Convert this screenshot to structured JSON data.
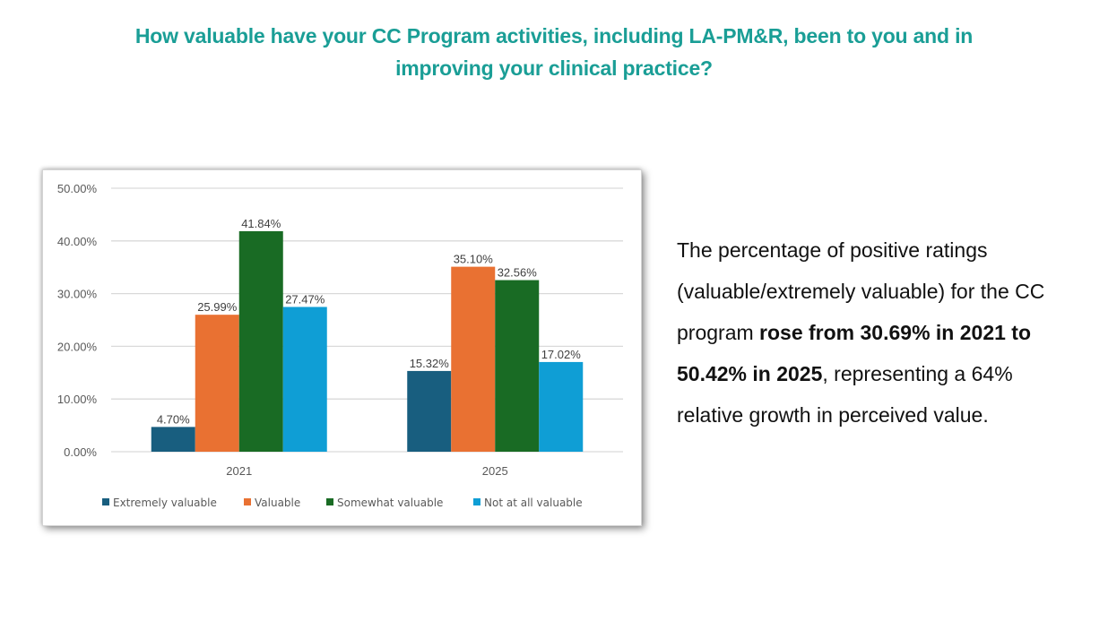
{
  "title": {
    "line1": "How valuable have your CC Program activities, including LA-PM&R, been to you and in",
    "line2": "improving your clinical practice?"
  },
  "summary": {
    "part1": "The percentage of positive ratings (valuable/extremely valuable) for the CC program ",
    "bold": "rose from 30.69% in 2021 to 50.42% in 2025",
    "part2": ", representing a 64% relative growth in perceived value."
  },
  "colors": {
    "title": "#1a9e96",
    "extremely_valuable": "#185e7f",
    "valuable": "#e97132",
    "somewhat_valuable": "#196b24",
    "not_at_all_valuable": "#0f9ed5"
  },
  "chart_data": {
    "type": "bar",
    "title": "",
    "xlabel": "",
    "ylabel": "",
    "categories": [
      "2021",
      "2025"
    ],
    "ylim": [
      0,
      50
    ],
    "yticks": [
      0,
      10,
      20,
      30,
      40,
      50
    ],
    "ytick_labels": [
      "0.00%",
      "10.00%",
      "20.00%",
      "30.00%",
      "40.00%",
      "50.00%"
    ],
    "grid": true,
    "legend_position": "bottom",
    "series": [
      {
        "name": "Extremely valuable",
        "color": "#185e7f",
        "values": [
          4.7,
          15.32
        ],
        "labels": [
          "4.70%",
          "15.32%"
        ]
      },
      {
        "name": "Valuable",
        "color": "#e97132",
        "values": [
          25.99,
          35.1
        ],
        "labels": [
          "25.99%",
          "35.10%"
        ]
      },
      {
        "name": "Somewhat valuable",
        "color": "#196b24",
        "values": [
          41.84,
          32.56
        ],
        "labels": [
          "41.84%",
          "32.56%"
        ]
      },
      {
        "name": "Not at all valuable",
        "color": "#0f9ed5",
        "values": [
          27.47,
          17.02
        ],
        "labels": [
          "27.47%",
          "17.02%"
        ]
      }
    ]
  }
}
